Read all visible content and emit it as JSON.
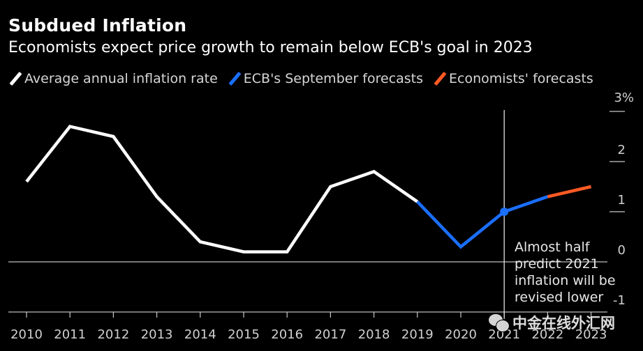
{
  "header": {
    "title": "Subdued Inflation",
    "subtitle": "Economists expect price growth to remain below ECB's goal in 2023"
  },
  "legend": [
    {
      "label": "Average annual inflation rate",
      "color": "#ffffff"
    },
    {
      "label": "ECB's September forecasts",
      "color": "#1a6fff"
    },
    {
      "label": "Economists' forecasts",
      "color": "#ff5a24"
    }
  ],
  "annotation": {
    "lines": [
      "Almost half",
      "predict 2021",
      "inflation will be",
      "revised lower"
    ]
  },
  "watermark": {
    "text": "中金在线外汇网"
  },
  "chart_data": {
    "type": "line",
    "title": "Subdued Inflation",
    "subtitle": "Economists expect price growth to remain below ECB's goal in 2023",
    "xlabel": "",
    "ylabel": "%",
    "x": [
      "2010",
      "2011",
      "2012",
      "2013",
      "2014",
      "2015",
      "2016",
      "2017",
      "2018",
      "2019",
      "2020",
      "2021",
      "2022",
      "2023"
    ],
    "ylim": [
      -1,
      3
    ],
    "yticks": [
      3,
      2,
      1,
      0,
      -1
    ],
    "ytick_labels": [
      "3%",
      "2",
      "1",
      "0",
      "-1"
    ],
    "y_axis_side": "right",
    "grid": false,
    "legend_position": "top-left",
    "vertical_marker": {
      "x": "2021"
    },
    "series": [
      {
        "name": "Average annual inflation rate",
        "color": "#ffffff",
        "x": [
          "2010",
          "2011",
          "2012",
          "2013",
          "2014",
          "2015",
          "2016",
          "2017",
          "2018",
          "2019"
        ],
        "values": [
          1.6,
          2.7,
          2.5,
          1.3,
          0.4,
          0.2,
          0.2,
          1.5,
          1.8,
          1.2
        ]
      },
      {
        "name": "ECB's September forecasts",
        "color": "#1a6fff",
        "x": [
          "2019",
          "2020",
          "2021",
          "2022"
        ],
        "values": [
          1.2,
          0.3,
          1.0,
          1.3
        ],
        "marker_at": "2021"
      },
      {
        "name": "Economists' forecasts",
        "color": "#ff5a24",
        "x": [
          "2022",
          "2023"
        ],
        "values": [
          1.3,
          1.5
        ]
      }
    ]
  }
}
